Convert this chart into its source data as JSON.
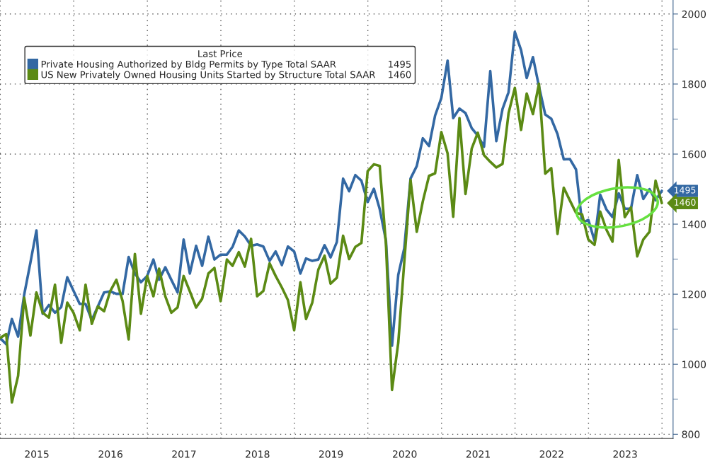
{
  "chart_data": {
    "type": "line",
    "legend_title": "Last Price",
    "x": [
      "2014-12-31",
      "2015-01-31",
      "2015-02-28",
      "2015-03-31",
      "2015-04-30",
      "2015-05-31",
      "2015-06-30",
      "2015-07-31",
      "2015-08-31",
      "2015-09-30",
      "2015-10-31",
      "2015-11-30",
      "2015-12-31",
      "2016-01-31",
      "2016-02-29",
      "2016-03-31",
      "2016-04-30",
      "2016-05-31",
      "2016-06-30",
      "2016-07-31",
      "2016-08-31",
      "2016-09-30",
      "2016-10-31",
      "2016-11-30",
      "2016-12-31",
      "2017-01-31",
      "2017-02-28",
      "2017-03-31",
      "2017-04-30",
      "2017-05-31",
      "2017-06-30",
      "2017-07-31",
      "2017-08-31",
      "2017-09-30",
      "2017-10-31",
      "2017-11-30",
      "2017-12-31",
      "2018-01-31",
      "2018-02-28",
      "2018-03-31",
      "2018-04-30",
      "2018-05-31",
      "2018-06-30",
      "2018-07-31",
      "2018-08-31",
      "2018-09-30",
      "2018-10-31",
      "2018-11-30",
      "2018-12-31",
      "2019-01-31",
      "2019-02-28",
      "2019-03-31",
      "2019-04-30",
      "2019-05-31",
      "2019-06-30",
      "2019-07-31",
      "2019-08-31",
      "2019-09-30",
      "2019-10-31",
      "2019-11-30",
      "2019-12-31",
      "2020-01-31",
      "2020-02-29",
      "2020-03-31",
      "2020-04-30",
      "2020-05-31",
      "2020-06-30",
      "2020-07-31",
      "2020-08-31",
      "2020-09-30",
      "2020-10-31",
      "2020-11-30",
      "2020-12-31",
      "2021-01-31",
      "2021-02-28",
      "2021-03-31",
      "2021-04-30",
      "2021-05-31",
      "2021-06-30",
      "2021-07-31",
      "2021-08-31",
      "2021-09-30",
      "2021-10-31",
      "2021-11-30",
      "2021-12-31",
      "2022-01-31",
      "2022-02-28",
      "2022-03-31",
      "2022-04-30",
      "2022-05-31",
      "2022-06-30",
      "2022-07-31",
      "2022-08-31",
      "2022-09-30",
      "2022-10-31",
      "2022-11-30",
      "2022-12-31",
      "2023-01-31",
      "2023-02-28",
      "2023-03-31",
      "2023-04-30",
      "2023-05-31",
      "2023-06-30",
      "2023-07-31",
      "2023-08-31",
      "2023-09-30",
      "2023-10-31",
      "2023-11-30",
      "2023-12-31"
    ],
    "series": [
      {
        "name": "Private Housing Authorized by Bldg Permits by Type Total SAAR",
        "color": "#3368a3",
        "values": [
          1075,
          1057,
          1129,
          1079,
          1198,
          1290,
          1382,
          1144,
          1169,
          1147,
          1163,
          1248,
          1210,
          1172,
          1172,
          1126,
          1165,
          1205,
          1208,
          1201,
          1201,
          1306,
          1259,
          1234,
          1252,
          1299,
          1241,
          1277,
          1241,
          1205,
          1356,
          1259,
          1338,
          1281,
          1364,
          1299,
          1313,
          1313,
          1335,
          1382,
          1365,
          1338,
          1342,
          1336,
          1295,
          1322,
          1283,
          1336,
          1322,
          1259,
          1302,
          1295,
          1299,
          1340,
          1305,
          1349,
          1530,
          1494,
          1540,
          1524,
          1463,
          1501,
          1443,
          1353,
          1053,
          1255,
          1331,
          1530,
          1566,
          1645,
          1623,
          1710,
          1760,
          1867,
          1703,
          1730,
          1717,
          1674,
          1653,
          1621,
          1837,
          1637,
          1729,
          1777,
          1949,
          1897,
          1817,
          1877,
          1793,
          1713,
          1701,
          1657,
          1585,
          1586,
          1556,
          1404,
          1412,
          1352,
          1484,
          1442,
          1420,
          1488,
          1444,
          1444,
          1540,
          1472,
          1500,
          1468,
          1495
        ],
        "value_labels": [
          null,
          null,
          null,
          null,
          null,
          null,
          null,
          null,
          null,
          null,
          null,
          null,
          null,
          null,
          null,
          null,
          null,
          null,
          null,
          null,
          null,
          null,
          null,
          null,
          null,
          null,
          null,
          null,
          null,
          null,
          null,
          null,
          null,
          null,
          null,
          null,
          null,
          null,
          null,
          null,
          null,
          null,
          null,
          null,
          null,
          null,
          null,
          null,
          null,
          null,
          null,
          null,
          null,
          null,
          null,
          null,
          null,
          null,
          null,
          null,
          null,
          null,
          null,
          null,
          null,
          null,
          null,
          null,
          null,
          null,
          null,
          null,
          null,
          null,
          null,
          null,
          null,
          null,
          null,
          null,
          null,
          null,
          null,
          null,
          null,
          null,
          null,
          null,
          null,
          null,
          null,
          null,
          null,
          null,
          null,
          null,
          null,
          null,
          null,
          null,
          null,
          null,
          null,
          null,
          null,
          null,
          null,
          null,
          "1495"
        ]
      },
      {
        "name": "US New Privately Owned Housing Units Started by Structure Total SAAR",
        "color": "#5b8a14",
        "values": [
          1075,
          1086,
          891,
          967,
          1190,
          1082,
          1205,
          1147,
          1133,
          1227,
          1061,
          1176,
          1147,
          1097,
          1227,
          1115,
          1165,
          1151,
          1208,
          1241,
          1180,
          1071,
          1315,
          1144,
          1252,
          1194,
          1273,
          1194,
          1147,
          1162,
          1252,
          1208,
          1162,
          1187,
          1259,
          1275,
          1180,
          1299,
          1281,
          1320,
          1279,
          1358,
          1194,
          1209,
          1288,
          1252,
          1219,
          1183,
          1097,
          1234,
          1129,
          1176,
          1270,
          1310,
          1230,
          1247,
          1367,
          1300,
          1335,
          1346,
          1551,
          1571,
          1566,
          1342,
          927,
          1061,
          1292,
          1526,
          1378,
          1465,
          1538,
          1545,
          1663,
          1602,
          1421,
          1703,
          1486,
          1616,
          1661,
          1597,
          1578,
          1562,
          1572,
          1717,
          1789,
          1669,
          1773,
          1714,
          1801,
          1544,
          1560,
          1372,
          1504,
          1468,
          1432,
          1428,
          1356,
          1341,
          1436,
          1384,
          1350,
          1583,
          1420,
          1448,
          1308,
          1356,
          1378,
          1524,
          1460
        ],
        "value_labels": [
          null,
          null,
          null,
          null,
          null,
          null,
          null,
          null,
          null,
          null,
          null,
          null,
          null,
          null,
          null,
          null,
          null,
          null,
          null,
          null,
          null,
          null,
          null,
          null,
          null,
          null,
          null,
          null,
          null,
          null,
          null,
          null,
          null,
          null,
          null,
          null,
          null,
          null,
          null,
          null,
          null,
          null,
          null,
          null,
          null,
          null,
          null,
          null,
          null,
          null,
          null,
          null,
          null,
          null,
          null,
          null,
          null,
          null,
          null,
          null,
          null,
          null,
          null,
          null,
          null,
          null,
          null,
          null,
          null,
          null,
          null,
          null,
          null,
          null,
          null,
          null,
          null,
          null,
          null,
          null,
          null,
          null,
          null,
          null,
          null,
          null,
          null,
          null,
          null,
          null,
          null,
          null,
          null,
          null,
          null,
          null,
          null,
          null,
          null,
          null,
          null,
          null,
          null,
          null,
          null,
          null,
          null,
          null,
          "1460"
        ]
      }
    ],
    "xlim": [
      "2014-12-31",
      "2024-02-25"
    ],
    "xticks": [
      {
        "value": "2015-01-01",
        "label": null
      },
      {
        "value": "2016-01-01",
        "label": null
      },
      {
        "value": "2017-01-01",
        "label": null
      },
      {
        "value": "2018-01-01",
        "label": null
      },
      {
        "value": "2019-01-01",
        "label": null
      },
      {
        "value": "2020-01-01",
        "label": null
      },
      {
        "value": "2021-01-01",
        "label": null
      },
      {
        "value": "2022-01-01",
        "label": null
      },
      {
        "value": "2023-01-01",
        "label": null
      },
      {
        "value": "2024-01-01",
        "label": null
      },
      {
        "value": "2015-07-02",
        "label": "2015"
      },
      {
        "value": "2016-07-02",
        "label": "2016"
      },
      {
        "value": "2017-07-02",
        "label": "2017"
      },
      {
        "value": "2018-07-02",
        "label": "2018"
      },
      {
        "value": "2019-07-02",
        "label": "2019"
      },
      {
        "value": "2020-07-02",
        "label": "2020"
      },
      {
        "value": "2021-07-02",
        "label": "2021"
      },
      {
        "value": "2022-07-02",
        "label": "2022"
      },
      {
        "value": "2023-07-02",
        "label": "2023"
      }
    ],
    "ylim": [
      788,
      2040
    ],
    "yticks": [
      800,
      {
        "value": 900,
        "label": null
      },
      1000,
      {
        "value": 1100,
        "label": null
      },
      1200,
      {
        "value": 1300,
        "label": null
      },
      1400,
      {
        "value": 1500,
        "label": null
      },
      1600,
      {
        "value": 1700,
        "label": null
      },
      1800,
      {
        "value": 1900,
        "label": null
      },
      2000
    ],
    "grid": true,
    "legend": "top left",
    "line_style": "solid",
    "marker": "none"
  }
}
